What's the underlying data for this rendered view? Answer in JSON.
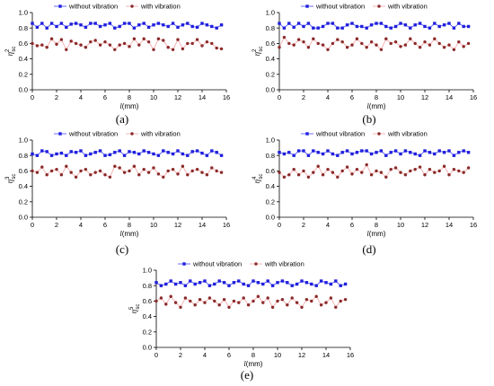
{
  "style": {
    "series_colors": [
      "#1f1fdc",
      "#8b2a2a"
    ],
    "series_line_colors": [
      "#4a4aff",
      "#f2a3a3"
    ]
  },
  "panels": [
    {
      "caption": "(a)",
      "ylabel_main": "η",
      "ylabel_sup": "2",
      "ylabel_sub": "sc"
    },
    {
      "caption": "(b)",
      "ylabel_main": "η",
      "ylabel_sup": "2",
      "ylabel_sub": "sc"
    },
    {
      "caption": "(c)",
      "ylabel_main": "η",
      "ylabel_sup": "3",
      "ylabel_sub": "sc"
    },
    {
      "caption": "(d)",
      "ylabel_main": "η",
      "ylabel_sup": "4",
      "ylabel_sub": "sc"
    },
    {
      "caption": "(e)",
      "ylabel_main": "η",
      "ylabel_sup": "5",
      "ylabel_sub": "sc"
    }
  ],
  "chart_data": [
    {
      "type": "line",
      "xlabel_var": "l",
      "xlabel_unit": "(mm)",
      "xlim": [
        0,
        16
      ],
      "ylim": [
        0.0,
        1.0
      ],
      "xticks": [
        "0",
        "2",
        "4",
        "6",
        "8",
        "10",
        "12",
        "14",
        "16"
      ],
      "yticks": [
        "0.0",
        "0.2",
        "0.4",
        "0.6",
        "0.8",
        "1.0"
      ],
      "grid": false,
      "legend": "top",
      "x": [
        0,
        0.4,
        0.8,
        1.2,
        1.6,
        2.0,
        2.4,
        2.8,
        3.2,
        3.6,
        4.0,
        4.4,
        4.8,
        5.2,
        5.6,
        6.0,
        6.4,
        6.8,
        7.2,
        7.6,
        8.0,
        8.4,
        8.8,
        9.2,
        9.6,
        10.0,
        10.4,
        10.8,
        11.2,
        11.6,
        12.0,
        12.4,
        12.8,
        13.2,
        13.6,
        14.0,
        14.4,
        14.8,
        15.2,
        15.6
      ],
      "series": [
        {
          "name": "without vibration",
          "values": [
            0.86,
            0.81,
            0.86,
            0.8,
            0.86,
            0.82,
            0.86,
            0.81,
            0.85,
            0.86,
            0.84,
            0.81,
            0.86,
            0.86,
            0.82,
            0.84,
            0.86,
            0.8,
            0.82,
            0.86,
            0.86,
            0.8,
            0.84,
            0.86,
            0.81,
            0.84,
            0.86,
            0.84,
            0.82,
            0.86,
            0.81,
            0.84,
            0.86,
            0.82,
            0.81,
            0.86,
            0.84,
            0.82,
            0.8,
            0.84
          ]
        },
        {
          "name": "with vibration",
          "values": [
            0.6,
            0.57,
            0.58,
            0.55,
            0.66,
            0.59,
            0.65,
            0.52,
            0.63,
            0.6,
            0.58,
            0.55,
            0.62,
            0.64,
            0.58,
            0.62,
            0.58,
            0.52,
            0.58,
            0.6,
            0.56,
            0.66,
            0.58,
            0.66,
            0.62,
            0.52,
            0.66,
            0.64,
            0.55,
            0.52,
            0.65,
            0.53,
            0.6,
            0.6,
            0.65,
            0.57,
            0.62,
            0.6,
            0.54,
            0.53
          ]
        }
      ]
    },
    {
      "type": "line",
      "xlabel_var": "l",
      "xlabel_unit": "(mm)",
      "xlim": [
        0,
        16
      ],
      "ylim": [
        0.0,
        1.0
      ],
      "xticks": [
        "0",
        "2",
        "4",
        "6",
        "8",
        "10",
        "12",
        "14",
        "16"
      ],
      "yticks": [
        "0.0",
        "0.2",
        "0.4",
        "0.6",
        "0.8",
        "1.0"
      ],
      "grid": false,
      "legend": "top",
      "x": [
        0,
        0.4,
        0.8,
        1.2,
        1.6,
        2.0,
        2.4,
        2.8,
        3.2,
        3.6,
        4.0,
        4.4,
        4.8,
        5.2,
        5.6,
        6.0,
        6.4,
        6.8,
        7.2,
        7.6,
        8.0,
        8.4,
        8.8,
        9.2,
        9.6,
        10.0,
        10.4,
        10.8,
        11.2,
        11.6,
        12.0,
        12.4,
        12.8,
        13.2,
        13.6,
        14.0,
        14.4,
        14.8,
        15.2,
        15.6
      ],
      "series": [
        {
          "name": "without vibration",
          "values": [
            0.86,
            0.8,
            0.86,
            0.81,
            0.86,
            0.82,
            0.86,
            0.8,
            0.8,
            0.82,
            0.86,
            0.86,
            0.8,
            0.8,
            0.84,
            0.86,
            0.82,
            0.82,
            0.8,
            0.84,
            0.86,
            0.86,
            0.82,
            0.8,
            0.82,
            0.86,
            0.84,
            0.8,
            0.84,
            0.86,
            0.82,
            0.8,
            0.86,
            0.82,
            0.84,
            0.86,
            0.8,
            0.86,
            0.82,
            0.82
          ]
        },
        {
          "name": "with vibration",
          "values": [
            0.55,
            0.68,
            0.6,
            0.58,
            0.65,
            0.62,
            0.55,
            0.66,
            0.6,
            0.58,
            0.52,
            0.6,
            0.65,
            0.62,
            0.55,
            0.58,
            0.66,
            0.6,
            0.55,
            0.62,
            0.58,
            0.52,
            0.66,
            0.6,
            0.62,
            0.56,
            0.58,
            0.66,
            0.6,
            0.55,
            0.62,
            0.58,
            0.66,
            0.6,
            0.55,
            0.58,
            0.52,
            0.62,
            0.56,
            0.6
          ]
        }
      ]
    },
    {
      "type": "line",
      "xlabel_var": "l",
      "xlabel_unit": "(mm)",
      "xlim": [
        0,
        16
      ],
      "ylim": [
        0.0,
        1.0
      ],
      "xticks": [
        "0",
        "2",
        "4",
        "6",
        "8",
        "10",
        "12",
        "14",
        "16"
      ],
      "yticks": [
        "0.0",
        "0.2",
        "0.4",
        "0.6",
        "0.8",
        "1.0"
      ],
      "grid": false,
      "legend": "top",
      "x": [
        0,
        0.4,
        0.8,
        1.2,
        1.6,
        2.0,
        2.4,
        2.8,
        3.2,
        3.6,
        4.0,
        4.4,
        4.8,
        5.2,
        5.6,
        6.0,
        6.4,
        6.8,
        7.2,
        7.6,
        8.0,
        8.4,
        8.8,
        9.2,
        9.6,
        10.0,
        10.4,
        10.8,
        11.2,
        11.6,
        12.0,
        12.4,
        12.8,
        13.2,
        13.6,
        14.0,
        14.4,
        14.8,
        15.2,
        15.6
      ],
      "series": [
        {
          "name": "without vibration",
          "values": [
            0.82,
            0.8,
            0.86,
            0.85,
            0.8,
            0.82,
            0.83,
            0.8,
            0.85,
            0.84,
            0.86,
            0.8,
            0.82,
            0.84,
            0.86,
            0.8,
            0.81,
            0.84,
            0.86,
            0.8,
            0.85,
            0.84,
            0.82,
            0.86,
            0.84,
            0.82,
            0.8,
            0.86,
            0.84,
            0.82,
            0.86,
            0.82,
            0.8,
            0.85,
            0.86,
            0.83,
            0.8,
            0.86,
            0.84,
            0.8
          ]
        },
        {
          "name": "with vibration",
          "values": [
            0.6,
            0.58,
            0.65,
            0.55,
            0.6,
            0.62,
            0.55,
            0.66,
            0.58,
            0.52,
            0.6,
            0.62,
            0.55,
            0.58,
            0.6,
            0.55,
            0.52,
            0.66,
            0.64,
            0.58,
            0.6,
            0.66,
            0.55,
            0.62,
            0.58,
            0.64,
            0.56,
            0.52,
            0.6,
            0.62,
            0.56,
            0.66,
            0.55,
            0.6,
            0.62,
            0.58,
            0.55,
            0.64,
            0.6,
            0.58
          ]
        }
      ]
    },
    {
      "type": "line",
      "xlabel_var": "l",
      "xlabel_unit": "(mm)",
      "xlim": [
        0,
        16
      ],
      "ylim": [
        0.0,
        1.0
      ],
      "xticks": [
        "0",
        "2",
        "4",
        "6",
        "8",
        "10",
        "12",
        "14",
        "16"
      ],
      "yticks": [
        "0.0",
        "0.2",
        "0.4",
        "0.6",
        "0.8",
        "1.0"
      ],
      "grid": false,
      "legend": "top",
      "x": [
        0,
        0.4,
        0.8,
        1.2,
        1.6,
        2.0,
        2.4,
        2.8,
        3.2,
        3.6,
        4.0,
        4.4,
        4.8,
        5.2,
        5.6,
        6.0,
        6.4,
        6.8,
        7.2,
        7.6,
        8.0,
        8.4,
        8.8,
        9.2,
        9.6,
        10.0,
        10.4,
        10.8,
        11.2,
        11.6,
        12.0,
        12.4,
        12.8,
        13.2,
        13.6,
        14.0,
        14.4,
        14.8,
        15.2,
        15.6
      ],
      "series": [
        {
          "name": "without vibration",
          "values": [
            0.84,
            0.82,
            0.84,
            0.8,
            0.86,
            0.86,
            0.8,
            0.86,
            0.84,
            0.82,
            0.86,
            0.82,
            0.8,
            0.84,
            0.86,
            0.82,
            0.84,
            0.86,
            0.86,
            0.82,
            0.84,
            0.86,
            0.8,
            0.84,
            0.86,
            0.82,
            0.86,
            0.84,
            0.82,
            0.8,
            0.86,
            0.84,
            0.82,
            0.86,
            0.84,
            0.86,
            0.8,
            0.84,
            0.86,
            0.84
          ]
        },
        {
          "name": "with vibration",
          "values": [
            0.58,
            0.52,
            0.55,
            0.62,
            0.55,
            0.6,
            0.52,
            0.58,
            0.66,
            0.55,
            0.62,
            0.58,
            0.52,
            0.6,
            0.65,
            0.56,
            0.62,
            0.58,
            0.68,
            0.55,
            0.6,
            0.58,
            0.52,
            0.62,
            0.64,
            0.58,
            0.55,
            0.6,
            0.62,
            0.65,
            0.55,
            0.62,
            0.58,
            0.6,
            0.66,
            0.55,
            0.62,
            0.6,
            0.58,
            0.64
          ]
        }
      ]
    },
    {
      "type": "line",
      "xlabel_var": "l",
      "xlabel_unit": "(mm)",
      "xlim": [
        0,
        16
      ],
      "ylim": [
        0.0,
        1.0
      ],
      "xticks": [
        "0",
        "2",
        "4",
        "6",
        "8",
        "10",
        "12",
        "14",
        "16"
      ],
      "yticks": [
        "0.0",
        "0.2",
        "0.4",
        "0.6",
        "0.8",
        "1.0"
      ],
      "grid": false,
      "legend": "top",
      "x": [
        0,
        0.4,
        0.8,
        1.2,
        1.6,
        2.0,
        2.4,
        2.8,
        3.2,
        3.6,
        4.0,
        4.4,
        4.8,
        5.2,
        5.6,
        6.0,
        6.4,
        6.8,
        7.2,
        7.6,
        8.0,
        8.4,
        8.8,
        9.2,
        9.6,
        10.0,
        10.4,
        10.8,
        11.2,
        11.6,
        12.0,
        12.4,
        12.8,
        13.2,
        13.6,
        14.0,
        14.4,
        14.8,
        15.2,
        15.6
      ],
      "series": [
        {
          "name": "without vibration",
          "values": [
            0.84,
            0.8,
            0.82,
            0.86,
            0.82,
            0.84,
            0.8,
            0.86,
            0.82,
            0.84,
            0.86,
            0.8,
            0.82,
            0.86,
            0.84,
            0.8,
            0.84,
            0.86,
            0.82,
            0.8,
            0.86,
            0.84,
            0.82,
            0.86,
            0.8,
            0.84,
            0.86,
            0.84,
            0.8,
            0.82,
            0.86,
            0.84,
            0.82,
            0.8,
            0.86,
            0.84,
            0.82,
            0.86,
            0.8,
            0.82
          ]
        },
        {
          "name": "with vibration",
          "values": [
            0.6,
            0.64,
            0.56,
            0.66,
            0.58,
            0.52,
            0.64,
            0.6,
            0.55,
            0.62,
            0.58,
            0.64,
            0.6,
            0.55,
            0.62,
            0.52,
            0.6,
            0.58,
            0.64,
            0.55,
            0.6,
            0.66,
            0.58,
            0.64,
            0.52,
            0.6,
            0.62,
            0.55,
            0.64,
            0.58,
            0.52,
            0.62,
            0.6,
            0.66,
            0.55,
            0.58,
            0.64,
            0.52,
            0.6,
            0.62
          ]
        }
      ]
    }
  ]
}
